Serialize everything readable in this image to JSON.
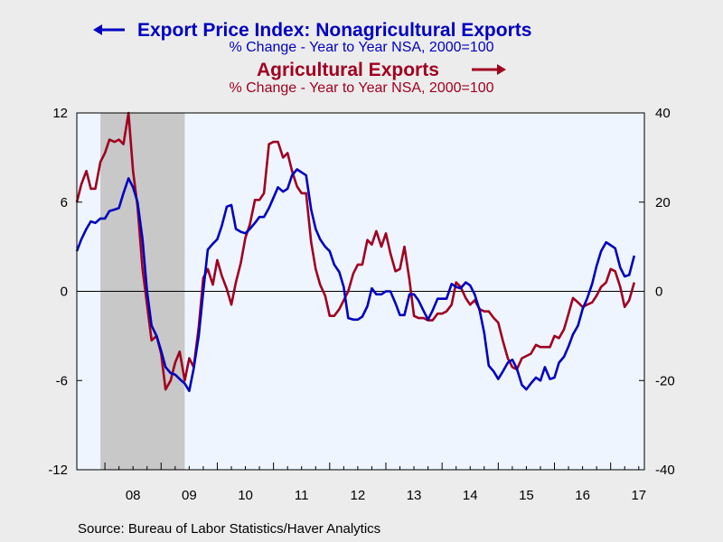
{
  "chart_data": {
    "type": "line",
    "title_series_1": "Export Price Index: Nonagricultural Exports",
    "subtitle_series_1": "% Change - Year to Year    NSA, 2000=100",
    "title_series_2": "Agricultural Exports",
    "subtitle_series_2": "% Change - Year to Year    NSA, 2000=100",
    "source": "Source:  Bureau of Labor Statistics/Haver Analytics",
    "x_tick_labels": [
      "08",
      "09",
      "10",
      "11",
      "12",
      "13",
      "14",
      "15",
      "16",
      "17"
    ],
    "x_range": [
      2007.5,
      2017.6
    ],
    "y_left": {
      "range": [
        -12,
        12
      ],
      "ticks": [
        12,
        6,
        0,
        -6,
        -12
      ]
    },
    "y_right": {
      "range": [
        -40,
        40
      ],
      "ticks": [
        40,
        20,
        0,
        -20,
        -40
      ]
    },
    "recession_shade": {
      "start": 2007.92,
      "end": 2009.42,
      "color": "#c8c8c8"
    },
    "plot_background": "#eef5ff",
    "grid": false,
    "series": [
      {
        "name": "Export Price Index: Nonagricultural Exports",
        "axis": "left",
        "color": "#0000c0",
        "points": [
          [
            2007.5,
            2.7
          ],
          [
            2007.58,
            3.5
          ],
          [
            2007.67,
            4.2
          ],
          [
            2007.75,
            4.7
          ],
          [
            2007.83,
            4.6
          ],
          [
            2007.92,
            4.9
          ],
          [
            2008.0,
            4.9
          ],
          [
            2008.08,
            5.4
          ],
          [
            2008.17,
            5.5
          ],
          [
            2008.25,
            5.6
          ],
          [
            2008.33,
            6.6
          ],
          [
            2008.42,
            7.6
          ],
          [
            2008.5,
            7.0
          ],
          [
            2008.58,
            6.0
          ],
          [
            2008.67,
            3.5
          ],
          [
            2008.75,
            0.0
          ],
          [
            2008.83,
            -2.3
          ],
          [
            2008.92,
            -3.0
          ],
          [
            2009.0,
            -4.0
          ],
          [
            2009.08,
            -5.1
          ],
          [
            2009.17,
            -5.5
          ],
          [
            2009.25,
            -5.6
          ],
          [
            2009.33,
            -5.9
          ],
          [
            2009.42,
            -6.2
          ],
          [
            2009.5,
            -6.7
          ],
          [
            2009.58,
            -5.2
          ],
          [
            2009.67,
            -3.0
          ],
          [
            2009.75,
            0.0
          ],
          [
            2009.83,
            2.8
          ],
          [
            2009.92,
            3.2
          ],
          [
            2010.0,
            3.5
          ],
          [
            2010.08,
            4.4
          ],
          [
            2010.17,
            5.7
          ],
          [
            2010.25,
            5.8
          ],
          [
            2010.33,
            4.2
          ],
          [
            2010.42,
            4.0
          ],
          [
            2010.5,
            3.9
          ],
          [
            2010.58,
            4.2
          ],
          [
            2010.67,
            4.6
          ],
          [
            2010.75,
            5.0
          ],
          [
            2010.83,
            5.0
          ],
          [
            2010.92,
            5.6
          ],
          [
            2011.0,
            6.3
          ],
          [
            2011.08,
            7.0
          ],
          [
            2011.17,
            6.7
          ],
          [
            2011.25,
            6.9
          ],
          [
            2011.33,
            7.8
          ],
          [
            2011.42,
            8.2
          ],
          [
            2011.5,
            8.0
          ],
          [
            2011.58,
            7.8
          ],
          [
            2011.67,
            5.5
          ],
          [
            2011.75,
            4.2
          ],
          [
            2011.83,
            3.5
          ],
          [
            2011.92,
            3.0
          ],
          [
            2012.0,
            2.7
          ],
          [
            2012.08,
            1.8
          ],
          [
            2012.17,
            1.3
          ],
          [
            2012.25,
            0.3
          ],
          [
            2012.33,
            -1.8
          ],
          [
            2012.42,
            -1.9
          ],
          [
            2012.5,
            -1.9
          ],
          [
            2012.58,
            -1.7
          ],
          [
            2012.67,
            -1.0
          ],
          [
            2012.75,
            0.2
          ],
          [
            2012.83,
            -0.2
          ],
          [
            2012.92,
            -0.2
          ],
          [
            2013.0,
            0.0
          ],
          [
            2013.08,
            0.0
          ],
          [
            2013.17,
            -0.8
          ],
          [
            2013.25,
            -1.6
          ],
          [
            2013.33,
            -1.6
          ],
          [
            2013.42,
            -0.2
          ],
          [
            2013.5,
            -0.2
          ],
          [
            2013.58,
            -0.6
          ],
          [
            2013.67,
            -1.3
          ],
          [
            2013.75,
            -1.9
          ],
          [
            2013.83,
            -1.3
          ],
          [
            2013.92,
            -0.5
          ],
          [
            2014.0,
            -0.5
          ],
          [
            2014.08,
            -0.5
          ],
          [
            2014.17,
            0.5
          ],
          [
            2014.25,
            0.3
          ],
          [
            2014.33,
            0.2
          ],
          [
            2014.42,
            0.6
          ],
          [
            2014.5,
            0.4
          ],
          [
            2014.58,
            -0.2
          ],
          [
            2014.67,
            -1.3
          ],
          [
            2014.75,
            -2.8
          ],
          [
            2014.83,
            -5.0
          ],
          [
            2014.92,
            -5.4
          ],
          [
            2015.0,
            -5.9
          ],
          [
            2015.08,
            -5.4
          ],
          [
            2015.17,
            -4.8
          ],
          [
            2015.25,
            -4.6
          ],
          [
            2015.33,
            -5.2
          ],
          [
            2015.42,
            -6.3
          ],
          [
            2015.5,
            -6.6
          ],
          [
            2015.58,
            -6.2
          ],
          [
            2015.67,
            -5.8
          ],
          [
            2015.75,
            -6.0
          ],
          [
            2015.83,
            -5.1
          ],
          [
            2015.92,
            -5.9
          ],
          [
            2016.0,
            -5.8
          ],
          [
            2016.08,
            -4.8
          ],
          [
            2016.17,
            -4.4
          ],
          [
            2016.25,
            -3.7
          ],
          [
            2016.33,
            -2.9
          ],
          [
            2016.42,
            -2.3
          ],
          [
            2016.5,
            -1.2
          ],
          [
            2016.58,
            -0.5
          ],
          [
            2016.67,
            0.5
          ],
          [
            2016.75,
            1.7
          ],
          [
            2016.83,
            2.7
          ],
          [
            2016.92,
            3.3
          ],
          [
            2017.0,
            3.1
          ],
          [
            2017.08,
            2.9
          ],
          [
            2017.17,
            1.6
          ],
          [
            2017.25,
            1.0
          ],
          [
            2017.33,
            1.1
          ],
          [
            2017.42,
            2.4
          ]
        ]
      },
      {
        "name": "Agricultural Exports",
        "axis": "right",
        "color": "#a00020",
        "points": [
          [
            2007.5,
            20
          ],
          [
            2007.58,
            24
          ],
          [
            2007.67,
            27
          ],
          [
            2007.75,
            23
          ],
          [
            2007.83,
            23
          ],
          [
            2007.92,
            29
          ],
          [
            2008.0,
            31
          ],
          [
            2008.08,
            34
          ],
          [
            2008.17,
            33.5
          ],
          [
            2008.25,
            34
          ],
          [
            2008.33,
            33
          ],
          [
            2008.42,
            40
          ],
          [
            2008.5,
            27
          ],
          [
            2008.58,
            19
          ],
          [
            2008.67,
            5
          ],
          [
            2008.75,
            -3
          ],
          [
            2008.83,
            -11
          ],
          [
            2008.92,
            -10
          ],
          [
            2009.0,
            -14
          ],
          [
            2009.08,
            -22
          ],
          [
            2009.17,
            -20
          ],
          [
            2009.25,
            -16
          ],
          [
            2009.33,
            -13.5
          ],
          [
            2009.42,
            -20
          ],
          [
            2009.5,
            -15
          ],
          [
            2009.58,
            -17
          ],
          [
            2009.67,
            -8
          ],
          [
            2009.75,
            3
          ],
          [
            2009.83,
            5
          ],
          [
            2009.92,
            1.5
          ],
          [
            2010.0,
            7
          ],
          [
            2010.08,
            3.5
          ],
          [
            2010.17,
            0.5
          ],
          [
            2010.25,
            -3
          ],
          [
            2010.33,
            2
          ],
          [
            2010.42,
            6.5
          ],
          [
            2010.5,
            12
          ],
          [
            2010.58,
            15
          ],
          [
            2010.67,
            20.5
          ],
          [
            2010.75,
            20.5
          ],
          [
            2010.83,
            22
          ],
          [
            2010.92,
            33
          ],
          [
            2011.0,
            33.5
          ],
          [
            2011.08,
            33.5
          ],
          [
            2011.17,
            30
          ],
          [
            2011.25,
            31
          ],
          [
            2011.33,
            27
          ],
          [
            2011.42,
            23.5
          ],
          [
            2011.5,
            22
          ],
          [
            2011.58,
            22
          ],
          [
            2011.67,
            11
          ],
          [
            2011.75,
            5
          ],
          [
            2011.83,
            1.5
          ],
          [
            2011.92,
            -1
          ],
          [
            2012.0,
            -5.5
          ],
          [
            2012.08,
            -5.5
          ],
          [
            2012.17,
            -4
          ],
          [
            2012.25,
            -2
          ],
          [
            2012.33,
            0
          ],
          [
            2012.42,
            4
          ],
          [
            2012.5,
            6
          ],
          [
            2012.58,
            6
          ],
          [
            2012.67,
            11.5
          ],
          [
            2012.75,
            10.5
          ],
          [
            2012.83,
            13.5
          ],
          [
            2012.92,
            10
          ],
          [
            2013.0,
            13
          ],
          [
            2013.08,
            8.5
          ],
          [
            2013.17,
            4.5
          ],
          [
            2013.25,
            5
          ],
          [
            2013.33,
            10
          ],
          [
            2013.42,
            2.5
          ],
          [
            2013.5,
            -5.5
          ],
          [
            2013.58,
            -6
          ],
          [
            2013.67,
            -6
          ],
          [
            2013.75,
            -6.5
          ],
          [
            2013.83,
            -6.5
          ],
          [
            2013.92,
            -5
          ],
          [
            2014.0,
            -5
          ],
          [
            2014.08,
            -4.5
          ],
          [
            2014.17,
            -3
          ],
          [
            2014.25,
            2
          ],
          [
            2014.33,
            1
          ],
          [
            2014.42,
            -1.5
          ],
          [
            2014.5,
            -3
          ],
          [
            2014.58,
            -2
          ],
          [
            2014.67,
            -4
          ],
          [
            2014.75,
            -4.5
          ],
          [
            2014.83,
            -4.5
          ],
          [
            2014.92,
            -6
          ],
          [
            2015.0,
            -7
          ],
          [
            2015.08,
            -11
          ],
          [
            2015.17,
            -15
          ],
          [
            2015.25,
            -17
          ],
          [
            2015.33,
            -17.5
          ],
          [
            2015.42,
            -15
          ],
          [
            2015.5,
            -14.5
          ],
          [
            2015.58,
            -14
          ],
          [
            2015.67,
            -12
          ],
          [
            2015.75,
            -12.5
          ],
          [
            2015.83,
            -12.5
          ],
          [
            2015.92,
            -12.5
          ],
          [
            2016.0,
            -10
          ],
          [
            2016.08,
            -10.5
          ],
          [
            2016.17,
            -8.5
          ],
          [
            2016.25,
            -5
          ],
          [
            2016.33,
            -1.5
          ],
          [
            2016.42,
            -2.5
          ],
          [
            2016.5,
            -3.5
          ],
          [
            2016.58,
            -3
          ],
          [
            2016.67,
            -2.5
          ],
          [
            2016.75,
            -1
          ],
          [
            2016.83,
            1
          ],
          [
            2016.92,
            2
          ],
          [
            2017.0,
            5
          ],
          [
            2017.08,
            4.5
          ],
          [
            2017.17,
            1
          ],
          [
            2017.25,
            -3.5
          ],
          [
            2017.33,
            -2
          ],
          [
            2017.42,
            2
          ]
        ]
      }
    ]
  }
}
